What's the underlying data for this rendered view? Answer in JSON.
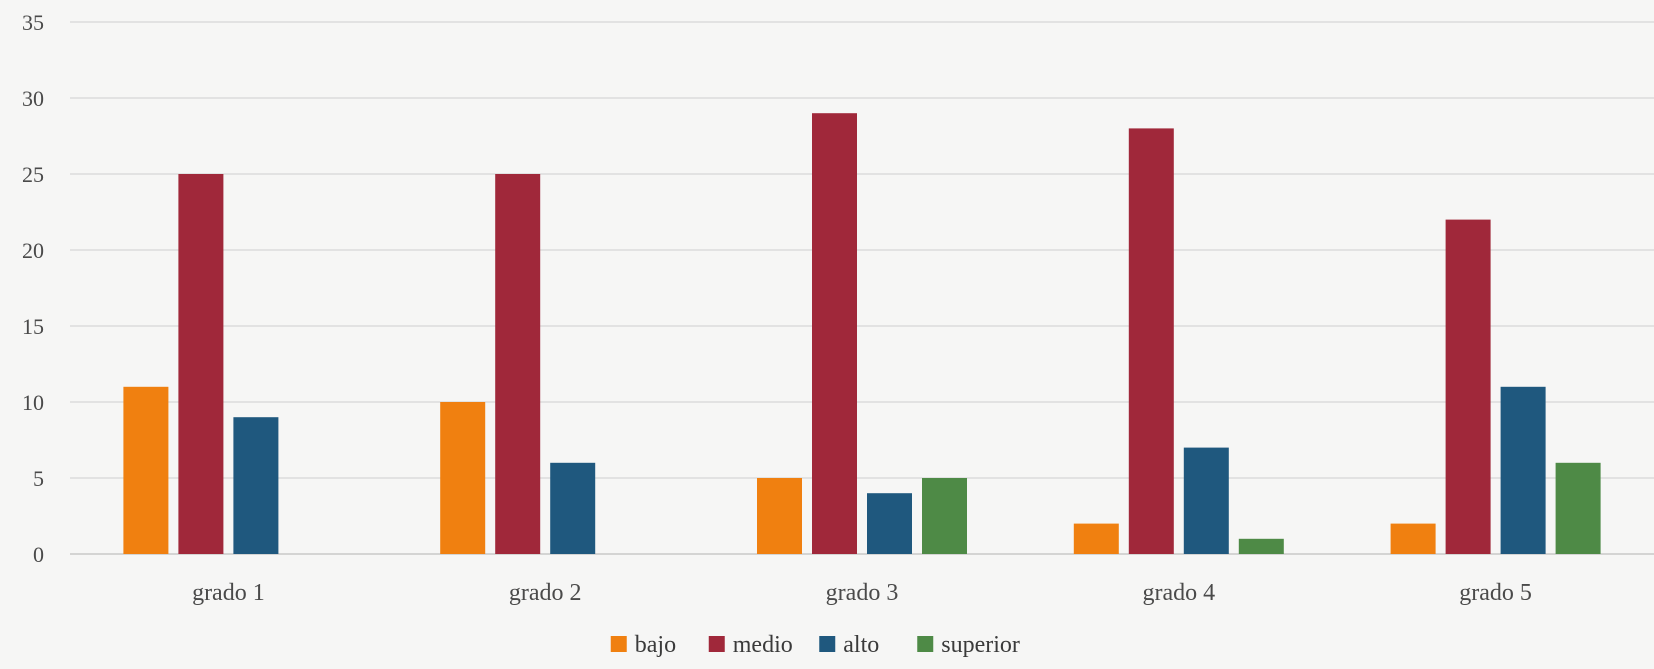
{
  "chart_data": {
    "type": "bar",
    "categories": [
      "grado 1",
      "grado 2",
      "grado 3",
      "grado 4",
      "grado 5"
    ],
    "series": [
      {
        "name": "bajo",
        "color": "#f08010",
        "values": [
          11,
          10,
          5,
          2,
          2
        ]
      },
      {
        "name": "medio",
        "color": "#a0283a",
        "values": [
          25,
          25,
          29,
          28,
          22
        ]
      },
      {
        "name": "alto",
        "color": "#1f587e",
        "values": [
          9,
          6,
          4,
          7,
          11
        ]
      },
      {
        "name": "superior",
        "color": "#4e8a46",
        "values": [
          0,
          0,
          5,
          1,
          6
        ]
      }
    ],
    "y_ticks": [
      "0",
      "5",
      "10",
      "15",
      "20",
      "25",
      "30",
      "35"
    ],
    "ylim": [
      0,
      35
    ],
    "grid": true,
    "legend_position": "bottom"
  }
}
